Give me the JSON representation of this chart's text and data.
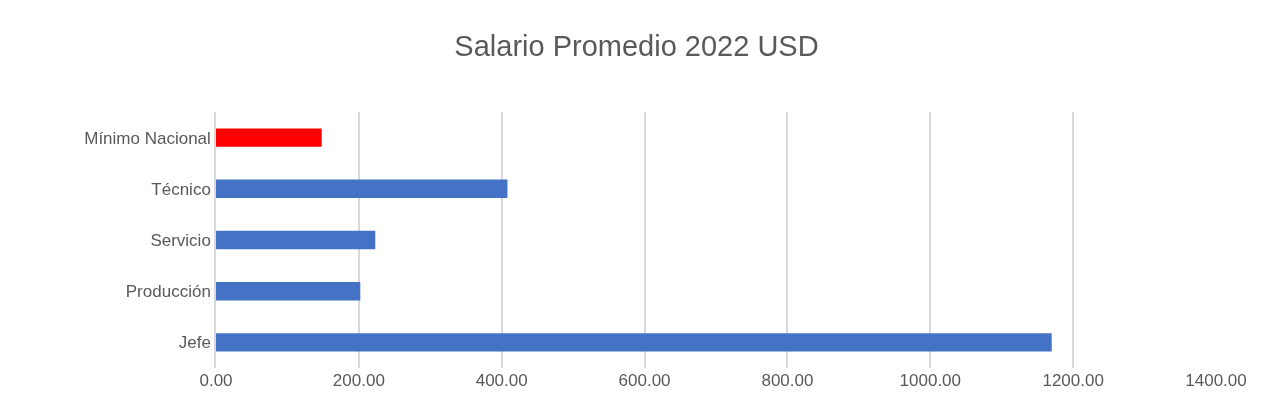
{
  "chart_data": {
    "type": "bar",
    "orientation": "horizontal",
    "title": "Salario Promedio 2022 USD",
    "categories": [
      "Mínimo Nacional",
      "Técnico",
      "Servicio",
      "Producción",
      "Jefe"
    ],
    "values": [
      148,
      408,
      223,
      202,
      1170
    ],
    "colors": [
      "#ff0000",
      "#4472c4",
      "#4472c4",
      "#4472c4",
      "#4472c4"
    ],
    "xlim": [
      0,
      1400
    ],
    "xticks": [
      {
        "value": 0,
        "label": "0.00"
      },
      {
        "value": 200,
        "label": "200.00"
      },
      {
        "value": 400,
        "label": "400.00"
      },
      {
        "value": 600,
        "label": "600.00"
      },
      {
        "value": 800,
        "label": "800.00"
      },
      {
        "value": 1000,
        "label": "1000.00"
      },
      {
        "value": 1200,
        "label": "1200.00"
      },
      {
        "value": 1400,
        "label": "1400.00"
      }
    ],
    "grid": "x"
  }
}
